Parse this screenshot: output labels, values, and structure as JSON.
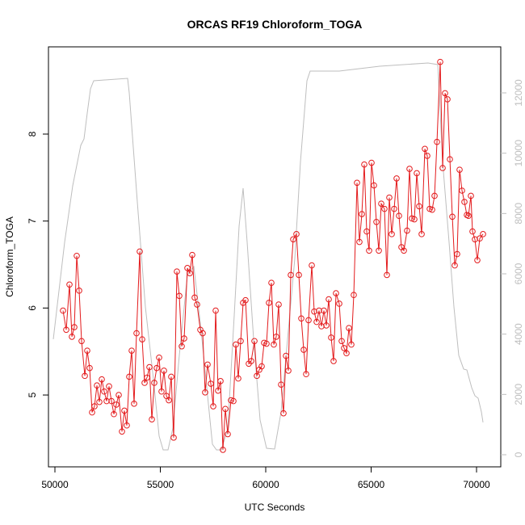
{
  "chart_data": {
    "type": "line",
    "title": "ORCAS RF19 Chloroform_TOGA",
    "x_label": "UTC Seconds",
    "y_label": "Chloroform_TOGA",
    "xlim": [
      49693,
      71149
    ],
    "xticks": [
      50000,
      55000,
      60000,
      65000,
      70000
    ],
    "ylim": [
      4.174,
      9.003
    ],
    "yticks": [
      5,
      6,
      7,
      8
    ],
    "y2lim": [
      -402,
      13527
    ],
    "y2ticks": [
      0,
      2000,
      4000,
      6000,
      8000,
      10000,
      12000
    ],
    "series": [
      {
        "color": "#e31a1c",
        "markers": true,
        "x": [
          50383,
          50536,
          50690,
          50805,
          50920,
          51034,
          51149,
          51264,
          51418,
          51532,
          51648,
          51762,
          51877,
          51992,
          52107,
          52222,
          52337,
          52452,
          52567,
          52682,
          52797,
          52912,
          53027,
          53180,
          53295,
          53410,
          53525,
          53640,
          53755,
          53870,
          54023,
          54138,
          54253,
          54368,
          54483,
          54598,
          54713,
          54828,
          54943,
          55057,
          55172,
          55287,
          55402,
          55517,
          55632,
          55785,
          55900,
          56015,
          56130,
          56284,
          56398,
          56513,
          56628,
          56743,
          56897,
          57011,
          57126,
          57241,
          57395,
          57510,
          57625,
          57739,
          57854,
          57969,
          58084,
          58199,
          58352,
          58467,
          58582,
          58697,
          58812,
          58927,
          59042,
          59195,
          59310,
          59464,
          59579,
          59693,
          59808,
          59923,
          60038,
          60153,
          60268,
          60383,
          60498,
          60613,
          60728,
          60843,
          60958,
          61073,
          61188,
          61303,
          61456,
          61571,
          61686,
          61801,
          61916,
          62031,
          62184,
          62299,
          62414,
          62529,
          62644,
          62759,
          62874,
          62989,
          63103,
          63218,
          63333,
          63487,
          63602,
          63716,
          63831,
          63946,
          64061,
          64176,
          64330,
          64444,
          64559,
          64674,
          64789,
          64904,
          65019,
          65134,
          65249,
          65364,
          65479,
          65632,
          65747,
          65862,
          65977,
          66092,
          66207,
          66322,
          66437,
          66552,
          66705,
          66820,
          66935,
          67050,
          67165,
          67280,
          67395,
          67548,
          67663,
          67778,
          67893,
          68008,
          68123,
          68276,
          68391,
          68506,
          68621,
          68736,
          68851,
          68966,
          69080,
          69195,
          69310,
          69425,
          69540,
          69617,
          69732,
          69808,
          69923,
          70038,
          70153,
          70307
        ],
        "values": [
          5.97,
          5.75,
          6.27,
          5.67,
          5.78,
          6.6,
          6.2,
          5.62,
          5.22,
          5.51,
          5.31,
          4.8,
          4.87,
          5.11,
          4.92,
          5.18,
          5.04,
          4.93,
          5.1,
          4.93,
          4.78,
          4.89,
          5.0,
          4.58,
          4.82,
          4.65,
          5.21,
          5.51,
          4.9,
          5.71,
          6.65,
          5.64,
          5.14,
          5.2,
          5.32,
          4.72,
          5.14,
          5.31,
          5.43,
          5.04,
          5.28,
          4.99,
          4.94,
          5.21,
          4.51,
          6.42,
          6.14,
          5.56,
          5.65,
          6.46,
          6.4,
          6.61,
          6.12,
          6.04,
          5.75,
          5.71,
          5.03,
          5.35,
          5.13,
          4.87,
          5.97,
          5.05,
          5.16,
          4.37,
          4.84,
          4.55,
          4.94,
          4.93,
          5.58,
          5.19,
          5.62,
          6.06,
          6.09,
          5.36,
          5.39,
          5.62,
          5.22,
          5.29,
          5.33,
          5.6,
          5.59,
          6.06,
          6.29,
          5.58,
          5.67,
          6.04,
          5.12,
          4.79,
          5.45,
          5.28,
          6.38,
          6.79,
          6.85,
          6.38,
          5.88,
          5.52,
          5.24,
          5.86,
          6.49,
          5.96,
          5.84,
          5.97,
          5.79,
          5.97,
          5.8,
          6.1,
          5.66,
          5.39,
          6.17,
          6.05,
          5.62,
          5.54,
          5.48,
          5.77,
          5.58,
          6.15,
          7.44,
          6.76,
          7.08,
          7.65,
          6.88,
          6.66,
          7.67,
          7.41,
          6.99,
          6.66,
          7.2,
          7.14,
          6.38,
          7.27,
          6.85,
          7.14,
          7.49,
          7.06,
          6.7,
          6.66,
          6.89,
          7.6,
          7.03,
          7.02,
          7.55,
          7.17,
          6.85,
          7.83,
          7.75,
          7.14,
          7.13,
          7.29,
          7.91,
          8.83,
          7.61,
          8.47,
          8.4,
          7.71,
          7.05,
          6.49,
          6.62,
          7.59,
          7.35,
          7.22,
          7.07,
          7.06,
          7.29,
          6.88,
          6.79,
          6.55,
          6.8,
          6.85
        ]
      },
      {
        "color": "#bebebe",
        "axis": "y2",
        "markers": false,
        "x": [
          49923,
          50460,
          50843,
          51226,
          51379,
          51533,
          51686,
          51839,
          52375,
          53448,
          53525,
          53908,
          54291,
          54674,
          54943,
          55134,
          55364,
          55594,
          55900,
          56284,
          56590,
          56897,
          57203,
          57471,
          57663,
          57893,
          58199,
          58506,
          58736,
          58927,
          59119,
          59425,
          59732,
          60038,
          60421,
          60728,
          61034,
          61379,
          61648,
          61954,
          62107,
          63487,
          65402,
          67701,
          68161,
          68391,
          68697,
          68927,
          69157,
          69387,
          69540,
          69770,
          69923,
          70077,
          70230,
          70307
        ],
        "values": [
          3831,
          7045,
          8920,
          10260,
          10474,
          11331,
          12135,
          12403,
          12430,
          12483,
          12001,
          8385,
          4902,
          2491,
          616,
          161,
          161,
          884,
          3295,
          5974,
          6242,
          4366,
          2223,
          348,
          161,
          161,
          884,
          4634,
          7581,
          8840,
          7045,
          3831,
          1152,
          214,
          188,
          1420,
          3831,
          6509,
          9724,
          12403,
          12724,
          12724,
          12885,
          12992,
          12938,
          9724,
          7045,
          4902,
          3295,
          2840,
          2813,
          2223,
          1956,
          1875,
          1420,
          1072
        ]
      }
    ]
  }
}
